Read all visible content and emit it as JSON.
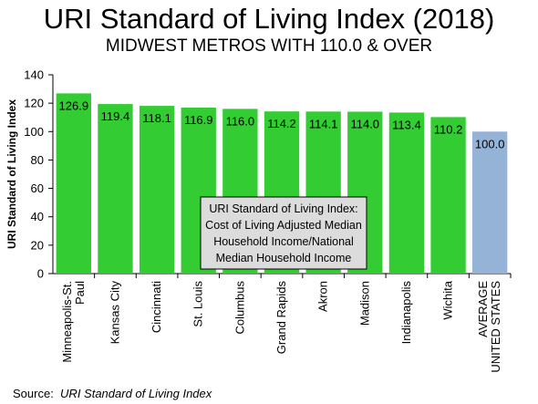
{
  "chart_data": {
    "type": "bar",
    "title": "URI Standard of Living Index (2018)",
    "subtitle": "MIDWEST METROS WITH 110.0 & OVER",
    "ylabel": "URI Standard of Living Index",
    "xlabel": "",
    "ylim": [
      0,
      140
    ],
    "yticks": [
      0,
      20,
      40,
      60,
      80,
      100,
      120,
      140
    ],
    "grid": false,
    "categories": [
      [
        "Minneapolis-St.",
        "Paul"
      ],
      [
        "Kansas City"
      ],
      [
        "Cincinnati"
      ],
      [
        "St. Louis"
      ],
      [
        "Columbus"
      ],
      [
        "Grand Rapids"
      ],
      [
        "Akron"
      ],
      [
        "Madison"
      ],
      [
        "Indianapolis"
      ],
      [
        "Wichita"
      ],
      [
        "AVERAGE",
        "UNITED STATES"
      ]
    ],
    "values": [
      126.9,
      119.4,
      118.1,
      116.9,
      116.0,
      114.2,
      114.1,
      114.0,
      113.4,
      110.2,
      100.0
    ],
    "value_labels": [
      "126.9",
      "119.4",
      "118.1",
      "116.9",
      "116.0",
      "114.2",
      "114.1",
      "114.0",
      "113.4",
      "110.2",
      "100.0"
    ],
    "bar_colors": [
      "#33cc33",
      "#33cc33",
      "#33cc33",
      "#33cc33",
      "#33cc33",
      "#33cc33",
      "#33cc33",
      "#33cc33",
      "#33cc33",
      "#33cc33",
      "#95b3d7"
    ],
    "annotation": [
      "URI Standard of Living Index:",
      "Cost of Living Adjusted Median",
      "Household Income/National",
      "Median Household Income"
    ]
  },
  "source": {
    "prefix": "Source:",
    "name": "URI Standard of Living Index"
  }
}
